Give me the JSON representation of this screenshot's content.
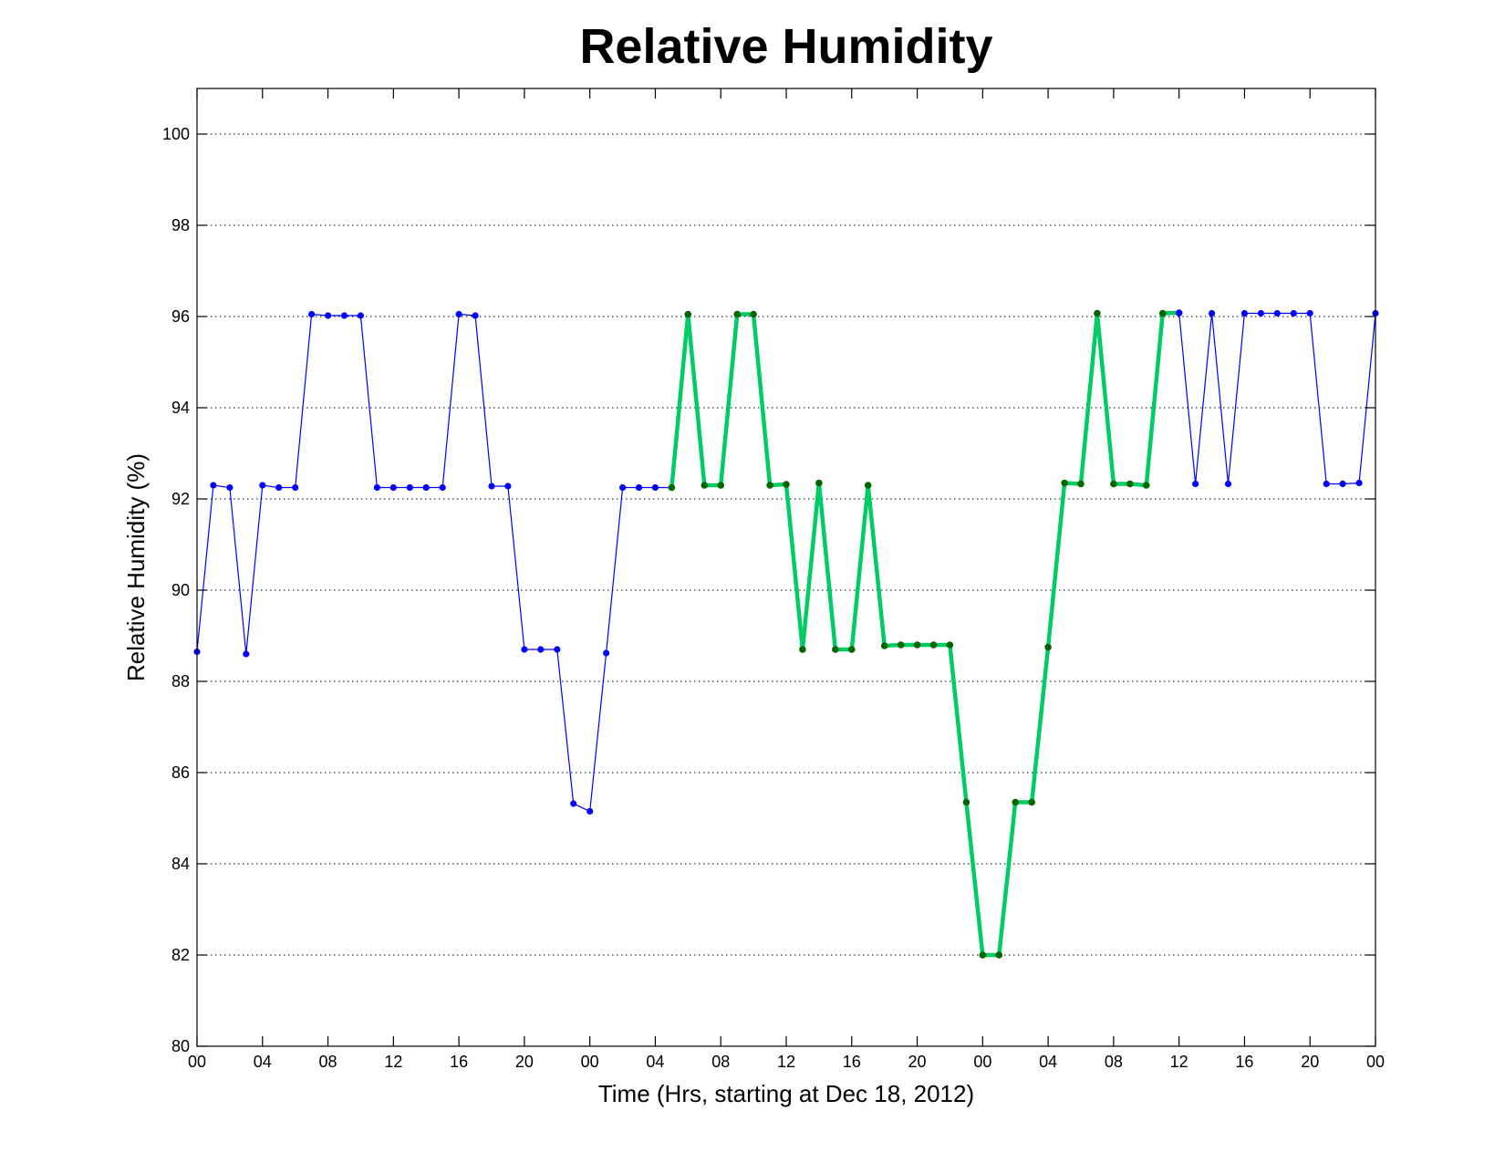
{
  "chart_data": {
    "type": "line",
    "title": "Relative Humidity",
    "xlabel": "Time (Hrs, starting at Dec 18, 2012)",
    "ylabel": "Relative Humidity (%)",
    "xlim": [
      0,
      72
    ],
    "ylim": [
      80,
      101
    ],
    "x_ticks": [
      0,
      4,
      8,
      12,
      16,
      20,
      24,
      28,
      32,
      36,
      40,
      44,
      48,
      52,
      56,
      60,
      64,
      68,
      72
    ],
    "x_tick_labels": [
      "00",
      "04",
      "08",
      "12",
      "16",
      "20",
      "00",
      "04",
      "08",
      "12",
      "16",
      "20",
      "00",
      "04",
      "08",
      "12",
      "16",
      "20",
      "00"
    ],
    "y_ticks": [
      80,
      82,
      84,
      86,
      88,
      90,
      92,
      94,
      96,
      98,
      100
    ],
    "y_tick_labels": [
      "80",
      "82",
      "84",
      "86",
      "88",
      "90",
      "92",
      "94",
      "96",
      "98",
      "100"
    ],
    "grid": "horizontal dotted",
    "legend": "none",
    "series": [
      {
        "color": "#0000ff",
        "line_style": "thin",
        "marker": "dot",
        "x": [
          0,
          1,
          2,
          3,
          4,
          5,
          6,
          7,
          8,
          9,
          10,
          11,
          12,
          13,
          14,
          15,
          16,
          17,
          18,
          19,
          20,
          21,
          22,
          23,
          24,
          25,
          26,
          27,
          28,
          29
        ],
        "values": [
          88.65,
          92.3,
          92.25,
          88.6,
          92.3,
          92.25,
          92.25,
          96.05,
          96.02,
          96.02,
          96.02,
          92.25,
          92.25,
          92.25,
          92.25,
          92.25,
          96.05,
          96.02,
          92.28,
          92.28,
          88.7,
          88.7,
          88.7,
          85.32,
          85.15,
          88.62,
          92.25,
          92.25,
          92.25,
          92.25
        ]
      },
      {
        "color": "#00cc66",
        "marker_color": "#006600",
        "line_style": "thick",
        "marker": "dot",
        "x": [
          29,
          30,
          31,
          32,
          33,
          34,
          35,
          36,
          37,
          38,
          39,
          40,
          41,
          42,
          43,
          44,
          45,
          46,
          47,
          48,
          49,
          50,
          51,
          52,
          53,
          54,
          55,
          56,
          57,
          58,
          59,
          60
        ],
        "values": [
          92.25,
          96.05,
          92.3,
          92.3,
          96.05,
          96.05,
          92.3,
          92.32,
          88.7,
          92.35,
          88.7,
          88.7,
          92.3,
          88.78,
          88.8,
          88.8,
          88.8,
          88.8,
          85.35,
          82.0,
          82.0,
          85.35,
          85.35,
          88.75,
          92.35,
          92.33,
          96.07,
          92.33,
          92.33,
          92.3,
          96.07,
          96.08
        ]
      },
      {
        "color": "#0000ff",
        "line_style": "thin",
        "marker": "dot",
        "x": [
          60,
          61,
          62,
          63,
          64,
          65,
          66,
          67,
          68,
          69,
          70,
          71,
          72
        ],
        "values": [
          96.08,
          92.33,
          96.07,
          92.33,
          96.07,
          96.07,
          96.07,
          96.07,
          96.07,
          92.33,
          92.33,
          92.35,
          96.07
        ]
      }
    ]
  }
}
